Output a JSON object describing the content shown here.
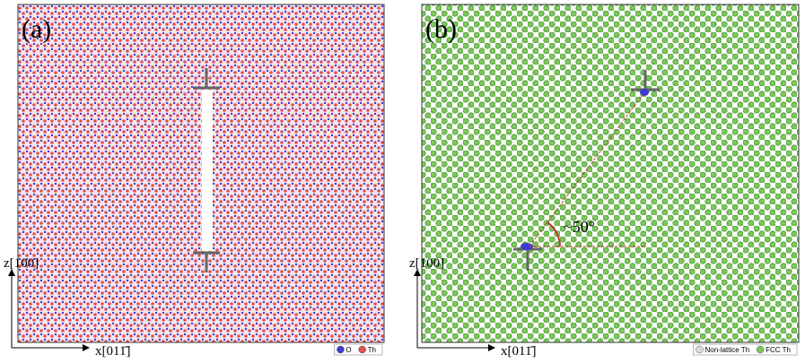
{
  "panels": [
    {
      "label": "(a)",
      "z_axis": "z[100]",
      "x_axis": "x[011̄]",
      "legend": [
        {
          "label": "O",
          "color": "#3b3bd6"
        },
        {
          "label": "Th",
          "color": "#e0514f"
        }
      ]
    },
    {
      "label": "(b)",
      "z_axis": "z[100]",
      "x_axis": "x[011̄]",
      "annotation": "~50°",
      "legend": [
        {
          "label": "Non-lattice Th",
          "color": "#d9d9d9"
        },
        {
          "label": "FCC Th",
          "color": "#7cc65c"
        }
      ]
    }
  ]
}
